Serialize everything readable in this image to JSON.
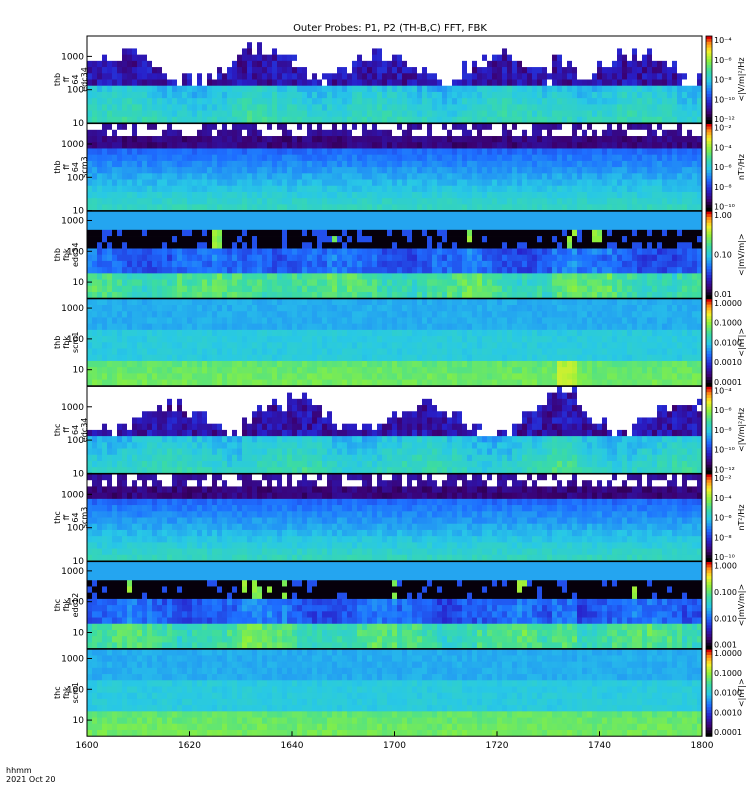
{
  "title": "Outer Probes: P1, P2 (TH-B,C) FFT, FBK",
  "footer": {
    "line1": "hhmm",
    "line2": "2021 Oct 20"
  },
  "chart_data": {
    "type": "heatmap",
    "x_ticks": [
      "1600",
      "1620",
      "1640",
      "1700",
      "1720",
      "1740",
      "1800"
    ],
    "panels": [
      {
        "id": "thb-ff-edc34",
        "label": [
          "thb",
          "ff",
          "64",
          "edc34"
        ],
        "y_ticks": [
          "10",
          "100",
          "1000"
        ],
        "y_range": [
          10,
          4096
        ],
        "y_scale": "log",
        "style": "fft-e",
        "colorbar": {
          "unit": "<|V/m|²/Hz",
          "ticks": [
            "10⁻⁴",
            "10⁻⁶",
            "10⁻⁸",
            "10⁻¹⁰",
            "10⁻¹²"
          ]
        }
      },
      {
        "id": "thb-ff-scm3",
        "label": [
          "thb",
          "ff",
          "64",
          "scm3"
        ],
        "y_ticks": [
          "10",
          "100",
          "1000"
        ],
        "y_range": [
          10,
          4096
        ],
        "y_scale": "log",
        "style": "fft-b",
        "colorbar": {
          "unit": "nT²/Hz",
          "ticks": [
            "10⁻²",
            "10⁻⁴",
            "10⁻⁶",
            "10⁻⁸",
            "10⁻¹⁰"
          ]
        }
      },
      {
        "id": "thb-fbk-edc34",
        "label": [
          "thb",
          "fbk",
          "edc34"
        ],
        "y_ticks": [
          "10",
          "100",
          "1000"
        ],
        "y_range": [
          3,
          2000
        ],
        "y_scale": "log",
        "style": "fbk-e",
        "colorbar": {
          "unit": "<|mV/m|>",
          "ticks": [
            "1.00",
            "0.10",
            "0.01"
          ]
        }
      },
      {
        "id": "thb-fbk-scm1",
        "label": [
          "thb",
          "fbk",
          "scm1"
        ],
        "y_ticks": [
          "10",
          "100",
          "1000"
        ],
        "y_range": [
          3,
          2000
        ],
        "y_scale": "log",
        "style": "fbk-b",
        "colorbar": {
          "unit": "<|nT|>",
          "ticks": [
            "1.0000",
            "0.1000",
            "0.0100",
            "0.0010",
            "0.0001"
          ]
        }
      },
      {
        "id": "thc-ff-edc34",
        "label": [
          "thc",
          "ff",
          "64",
          "edc34"
        ],
        "y_ticks": [
          "10",
          "100",
          "1000"
        ],
        "y_range": [
          10,
          4096
        ],
        "y_scale": "log",
        "style": "fft-e",
        "colorbar": {
          "unit": "<|V/m|²/Hz",
          "ticks": [
            "10⁻⁴",
            "10⁻⁶",
            "10⁻⁸",
            "10⁻¹⁰",
            "10⁻¹²"
          ]
        }
      },
      {
        "id": "thc-ff-scm3",
        "label": [
          "thc",
          "ff",
          "64",
          "scm3"
        ],
        "y_ticks": [
          "10",
          "100",
          "1000"
        ],
        "y_range": [
          10,
          4096
        ],
        "y_scale": "log",
        "style": "fft-b",
        "colorbar": {
          "unit": "nT²/Hz",
          "ticks": [
            "10⁻²",
            "10⁻⁴",
            "10⁻⁶",
            "10⁻⁸",
            "10⁻¹⁰"
          ]
        }
      },
      {
        "id": "thc-fbk-edc12",
        "label": [
          "thc",
          "fbk",
          "edc12"
        ],
        "y_ticks": [
          "10",
          "100",
          "1000"
        ],
        "y_range": [
          3,
          2000
        ],
        "y_scale": "log",
        "style": "fbk-e",
        "colorbar": {
          "unit": "<|mV/m|>",
          "ticks": [
            "1.000",
            "0.100",
            "0.010",
            "0.001"
          ]
        }
      },
      {
        "id": "thc-fbk-scm1",
        "label": [
          "thc",
          "fbk",
          "scm1"
        ],
        "y_ticks": [
          "10",
          "100",
          "1000"
        ],
        "y_range": [
          3,
          2000
        ],
        "y_scale": "log",
        "style": "fbk-b",
        "colorbar": {
          "unit": "<|nT|>",
          "ticks": [
            "1.0000",
            "0.1000",
            "0.0100",
            "0.0010",
            "0.0001"
          ]
        }
      }
    ]
  }
}
